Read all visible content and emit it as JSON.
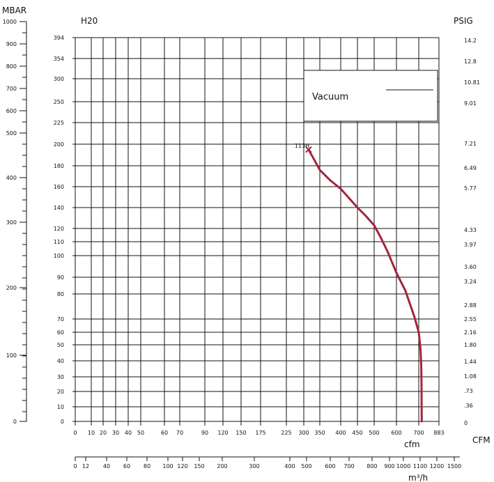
{
  "chart_data": {
    "type": "line",
    "title": "",
    "axes": {
      "x_cfm": {
        "title": "cfm",
        "unit_label": "CFM",
        "tick_labels": [
          "0",
          "10",
          "20",
          "30",
          "40",
          "50",
          "60",
          "70",
          "90",
          "120",
          "150",
          "175",
          "225",
          "300",
          "350",
          "400",
          "450",
          "500",
          "600",
          "700",
          "883"
        ],
        "range": [
          0,
          883
        ]
      },
      "x_m3h": {
        "title": "m³/h",
        "tick_labels": [
          "0",
          "12",
          "40",
          "60",
          "80",
          "100",
          "120",
          "150",
          "200",
          "300",
          "400",
          "500",
          "600",
          "700",
          "800",
          "900",
          "1000",
          "1100",
          "1200",
          "1500"
        ]
      },
      "y_h2o": {
        "title": "H20",
        "tick_labels": [
          "394",
          "354",
          "300",
          "250",
          "225",
          "200",
          "180",
          "160",
          "140",
          "120",
          "110",
          "100",
          "90",
          "80",
          "70",
          "60",
          "50",
          "40",
          "30",
          "20",
          "10",
          "0"
        ],
        "range": [
          0,
          394
        ]
      },
      "y_mbar": {
        "title": "MBAR",
        "tick_labels": [
          "1000",
          "900",
          "800",
          "700",
          "600",
          "500",
          "400",
          "300",
          "200",
          "100",
          "0"
        ],
        "range": [
          0,
          1000
        ]
      },
      "y_psig": {
        "title": "PSIG",
        "tick_labels": [
          "14.2",
          "12.8",
          "10.81",
          "9.01",
          "7.21",
          "6.49",
          "5.77",
          "4.33",
          "3.97",
          "3.60",
          "3.24",
          "2.88",
          "2.55",
          "2.16",
          "1.80",
          "1.44",
          "1.08",
          ".73",
          ".36",
          "0"
        ]
      }
    },
    "legend": {
      "label": "Vacuum",
      "position": "top-right"
    },
    "grid": true,
    "series": [
      {
        "name": "113H",
        "color": "#a3243b",
        "points": [
          {
            "x": 315,
            "y": 195
          },
          {
            "x": 330,
            "y": 187
          },
          {
            "x": 350,
            "y": 176
          },
          {
            "x": 375,
            "y": 166
          },
          {
            "x": 400,
            "y": 158
          },
          {
            "x": 425,
            "y": 149
          },
          {
            "x": 450,
            "y": 140
          },
          {
            "x": 475,
            "y": 132
          },
          {
            "x": 500,
            "y": 123
          },
          {
            "x": 530,
            "y": 113
          },
          {
            "x": 560,
            "y": 103
          },
          {
            "x": 600,
            "y": 92
          },
          {
            "x": 640,
            "y": 82
          },
          {
            "x": 680,
            "y": 71
          },
          {
            "x": 700,
            "y": 60
          },
          {
            "x": 715,
            "y": 48
          },
          {
            "x": 722,
            "y": 38
          },
          {
            "x": 725,
            "y": 25
          },
          {
            "x": 726,
            "y": 12
          },
          {
            "x": 727,
            "y": 0
          }
        ]
      }
    ]
  }
}
